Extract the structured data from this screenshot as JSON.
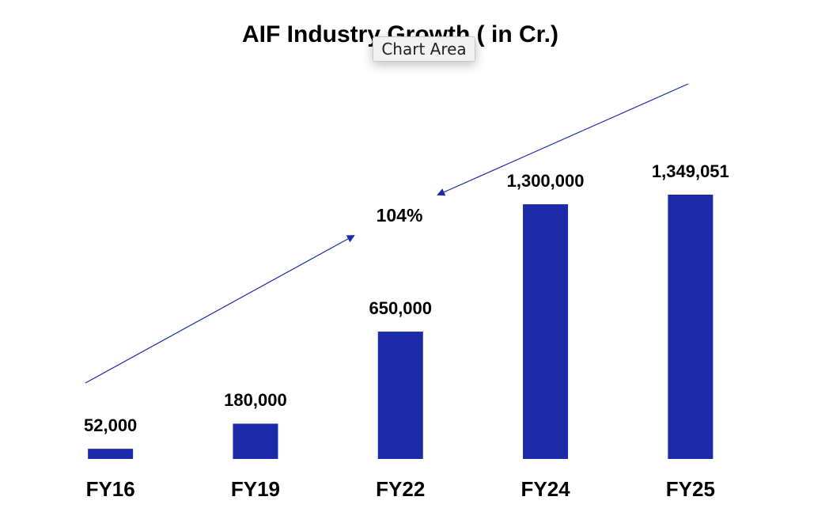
{
  "chart_data": {
    "type": "bar",
    "title": "AIF Industry Growth ( in Cr.)",
    "categories": [
      "FY16",
      "FY19",
      "FY22",
      "FY24",
      "FY25"
    ],
    "values": [
      52000,
      180000,
      650000,
      1300000,
      1349051
    ],
    "value_labels": [
      "52,000",
      "180,000",
      "650,000",
      "1,300,000",
      "1,349,051"
    ],
    "color": "#1c2aa8",
    "annotation": "104%"
  },
  "tooltip": "Chart Area"
}
